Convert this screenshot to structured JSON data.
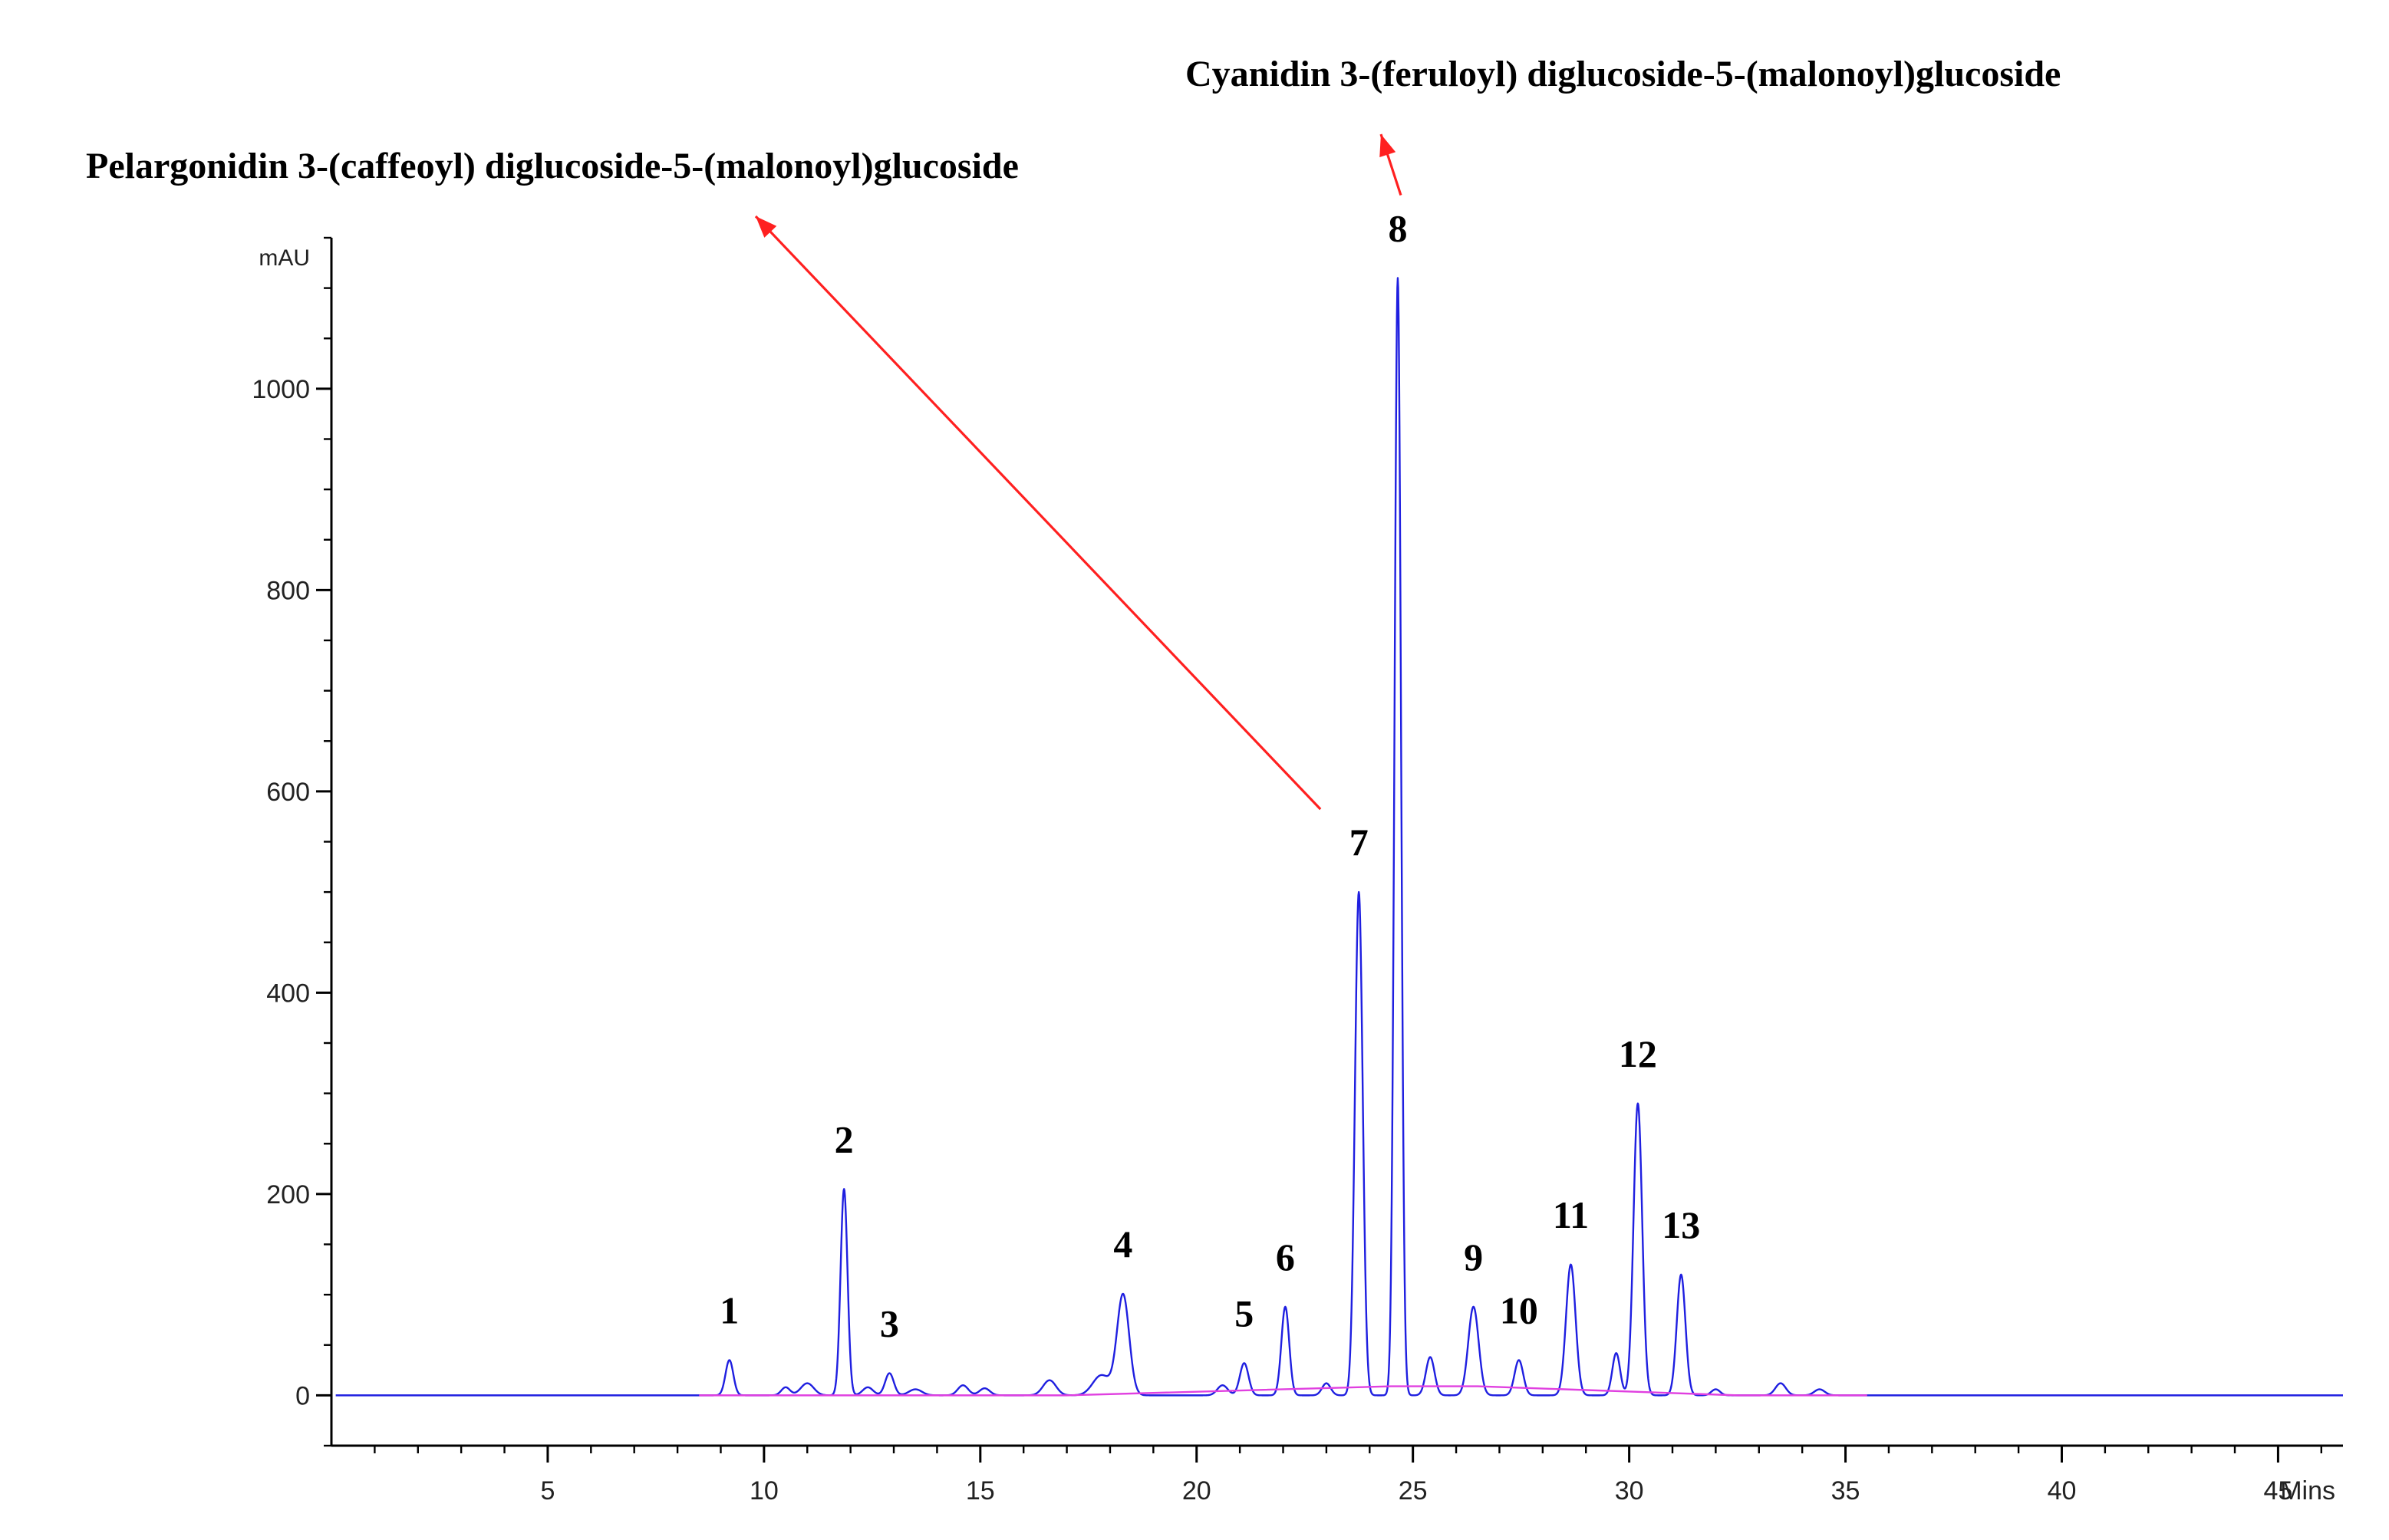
{
  "chart_data": {
    "type": "line",
    "title": "",
    "xlabel": "Mins",
    "ylabel": "mAU",
    "xlim": [
      0,
      46.5
    ],
    "ylim": [
      -50,
      1150
    ],
    "x_ticks": [
      5,
      10,
      15,
      20,
      25,
      30,
      35,
      40,
      45
    ],
    "y_ticks": [
      0,
      200,
      400,
      600,
      800,
      1000
    ],
    "x_tick_labels": [
      "5",
      "10",
      "15",
      "20",
      "25",
      "30",
      "35",
      "40",
      "45"
    ],
    "y_tick_labels": [
      "0",
      "200",
      "400",
      "600",
      "800",
      "1000"
    ],
    "grid": false,
    "series": [
      {
        "color": "#1f1fe0",
        "peaks": [
          {
            "x": 9.2,
            "y": 35,
            "w": 0.09
          },
          {
            "x": 10.5,
            "y": 8,
            "w": 0.1
          },
          {
            "x": 11.0,
            "y": 12,
            "w": 0.15
          },
          {
            "x": 11.85,
            "y": 205,
            "w": 0.08
          },
          {
            "x": 12.4,
            "y": 8,
            "w": 0.12
          },
          {
            "x": 12.9,
            "y": 22,
            "w": 0.1
          },
          {
            "x": 13.5,
            "y": 6,
            "w": 0.15
          },
          {
            "x": 14.6,
            "y": 10,
            "w": 0.12
          },
          {
            "x": 15.1,
            "y": 7,
            "w": 0.12
          },
          {
            "x": 16.6,
            "y": 15,
            "w": 0.15
          },
          {
            "x": 17.8,
            "y": 20,
            "w": 0.2
          },
          {
            "x": 18.3,
            "y": 100,
            "w": 0.14
          },
          {
            "x": 20.6,
            "y": 10,
            "w": 0.12
          },
          {
            "x": 21.1,
            "y": 32,
            "w": 0.1
          },
          {
            "x": 22.05,
            "y": 88,
            "w": 0.09
          },
          {
            "x": 23.0,
            "y": 12,
            "w": 0.1
          },
          {
            "x": 23.75,
            "y": 500,
            "w": 0.09
          },
          {
            "x": 24.65,
            "y": 1110,
            "w": 0.075
          },
          {
            "x": 25.4,
            "y": 38,
            "w": 0.1
          },
          {
            "x": 26.4,
            "y": 88,
            "w": 0.12
          },
          {
            "x": 27.45,
            "y": 35,
            "w": 0.1
          },
          {
            "x": 28.65,
            "y": 130,
            "w": 0.11
          },
          {
            "x": 29.7,
            "y": 42,
            "w": 0.09
          },
          {
            "x": 30.2,
            "y": 290,
            "w": 0.1
          },
          {
            "x": 31.2,
            "y": 120,
            "w": 0.1
          },
          {
            "x": 32.0,
            "y": 6,
            "w": 0.1
          },
          {
            "x": 33.5,
            "y": 12,
            "w": 0.12
          },
          {
            "x": 34.4,
            "y": 6,
            "w": 0.12
          }
        ]
      },
      {
        "color": "#e040e0",
        "baseline_points": [
          [
            8.5,
            0
          ],
          [
            17.0,
            0
          ],
          [
            24.5,
            9
          ],
          [
            26.5,
            9
          ],
          [
            32.5,
            0
          ],
          [
            35.5,
            0
          ]
        ]
      }
    ],
    "peak_labels": [
      {
        "text": "1",
        "x": 9.2
      },
      {
        "text": "2",
        "x": 11.85
      },
      {
        "text": "3",
        "x": 12.9
      },
      {
        "text": "4",
        "x": 18.3
      },
      {
        "text": "5",
        "x": 21.1
      },
      {
        "text": "6",
        "x": 22.05
      },
      {
        "text": "7",
        "x": 23.75
      },
      {
        "text": "8",
        "x": 24.65
      },
      {
        "text": "9",
        "x": 26.4
      },
      {
        "text": "10",
        "x": 27.45
      },
      {
        "text": "11",
        "x": 28.65
      },
      {
        "text": "12",
        "x": 30.2
      },
      {
        "text": "13",
        "x": 31.2
      }
    ],
    "annotations": [
      {
        "text": "Pelargonidin  3-(caffeoyl)  diglucoside-5-(malonoyl)glucoside",
        "peak": "7",
        "color": "#ff2020"
      },
      {
        "text": "Cyanidin  3-(feruloyl)  diglucoside-5-(malonoyl)glucoside",
        "peak": "8",
        "color": "#ff2020"
      }
    ]
  }
}
